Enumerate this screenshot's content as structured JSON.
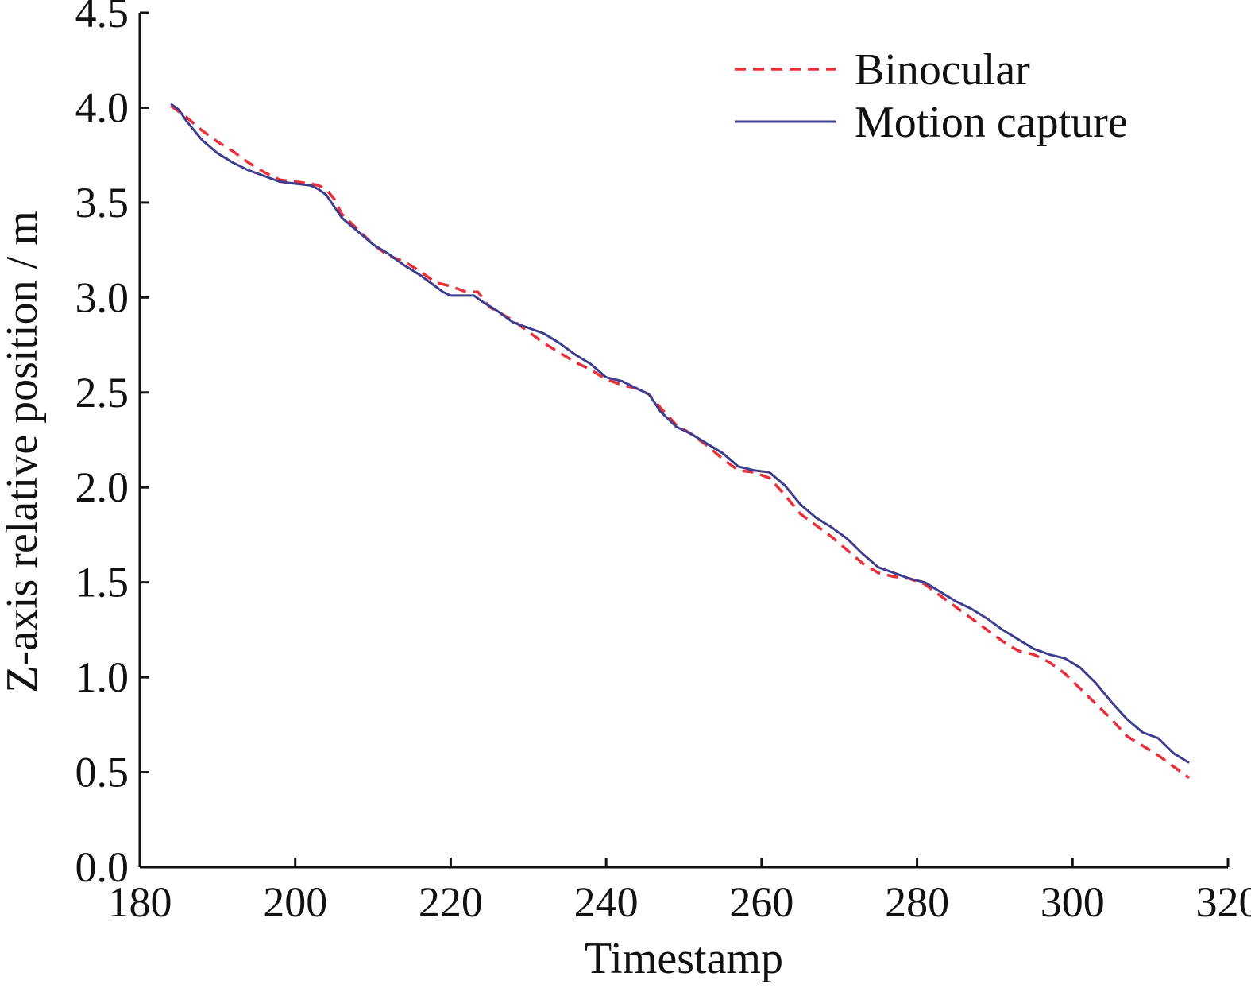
{
  "chart_data": {
    "type": "line",
    "title": "",
    "xlabel": "Timestamp",
    "ylabel": "Z-axis relative position / m",
    "xlim": [
      180,
      320
    ],
    "ylim": [
      0.0,
      4.5
    ],
    "xticks": [
      "180",
      "200",
      "220",
      "240",
      "260",
      "280",
      "300",
      "320"
    ],
    "yticks": [
      "0.0",
      "0.5",
      "1.0",
      "1.5",
      "2.0",
      "2.5",
      "3.0",
      "3.5",
      "4.0",
      "4.5"
    ],
    "grid": false,
    "legend_position": "top-right",
    "series": [
      {
        "name": "Binocular",
        "color": "#e8303a",
        "style": "dashed",
        "x": [
          184,
          186,
          188,
          190,
          192,
          194,
          196,
          198,
          200,
          202,
          203,
          204,
          205,
          206,
          208,
          210,
          212,
          214,
          216,
          218,
          220,
          222,
          223.5,
          225,
          228,
          230,
          232,
          234,
          236,
          238,
          240,
          242,
          244,
          245.5,
          247,
          249,
          251,
          253,
          255,
          257,
          259,
          261,
          263,
          265,
          267,
          269,
          271,
          273,
          275,
          277,
          279,
          281,
          283,
          285,
          287,
          289,
          291,
          293,
          295,
          297,
          299,
          301,
          303,
          305,
          307,
          309,
          311,
          313,
          315
        ],
        "y": [
          4.01,
          3.95,
          3.88,
          3.82,
          3.77,
          3.71,
          3.66,
          3.62,
          3.61,
          3.6,
          3.59,
          3.57,
          3.52,
          3.44,
          3.36,
          3.28,
          3.22,
          3.19,
          3.14,
          3.08,
          3.06,
          3.03,
          3.03,
          2.95,
          2.88,
          2.82,
          2.76,
          2.71,
          2.66,
          2.62,
          2.57,
          2.54,
          2.52,
          2.49,
          2.42,
          2.33,
          2.28,
          2.22,
          2.15,
          2.09,
          2.08,
          2.05,
          1.96,
          1.86,
          1.8,
          1.74,
          1.67,
          1.6,
          1.55,
          1.53,
          1.52,
          1.49,
          1.43,
          1.37,
          1.31,
          1.25,
          1.19,
          1.14,
          1.12,
          1.08,
          1.02,
          0.94,
          0.86,
          0.78,
          0.69,
          0.64,
          0.59,
          0.53,
          0.47
        ]
      },
      {
        "name": "Motion capture",
        "color": "#3e3e8e",
        "style": "solid",
        "x": [
          184,
          185,
          186,
          188,
          190,
          192,
          194,
          196,
          198,
          200,
          202,
          203,
          204,
          205,
          206,
          208,
          210,
          212,
          214,
          216,
          218,
          219,
          220,
          222,
          223,
          224,
          226,
          228,
          230,
          232,
          234,
          236,
          238,
          240,
          242,
          244,
          245.5,
          247,
          249,
          251,
          253,
          255,
          257,
          259,
          261,
          263,
          265,
          267,
          269,
          271,
          273,
          275,
          277,
          279,
          281,
          283,
          285,
          287,
          289,
          291,
          293,
          295,
          297,
          299,
          301,
          303,
          305,
          307,
          309,
          311,
          313,
          315
        ],
        "y": [
          4.02,
          3.99,
          3.93,
          3.83,
          3.76,
          3.71,
          3.67,
          3.64,
          3.61,
          3.6,
          3.59,
          3.57,
          3.54,
          3.48,
          3.42,
          3.35,
          3.28,
          3.23,
          3.17,
          3.12,
          3.06,
          3.03,
          3.01,
          3.01,
          3.01,
          2.98,
          2.93,
          2.87,
          2.84,
          2.81,
          2.76,
          2.7,
          2.65,
          2.58,
          2.56,
          2.52,
          2.49,
          2.4,
          2.32,
          2.28,
          2.23,
          2.18,
          2.11,
          2.09,
          2.08,
          2.01,
          1.91,
          1.84,
          1.79,
          1.73,
          1.65,
          1.58,
          1.55,
          1.52,
          1.5,
          1.45,
          1.4,
          1.36,
          1.31,
          1.25,
          1.2,
          1.15,
          1.12,
          1.1,
          1.05,
          0.97,
          0.87,
          0.78,
          0.71,
          0.68,
          0.6,
          0.55
        ]
      }
    ]
  }
}
